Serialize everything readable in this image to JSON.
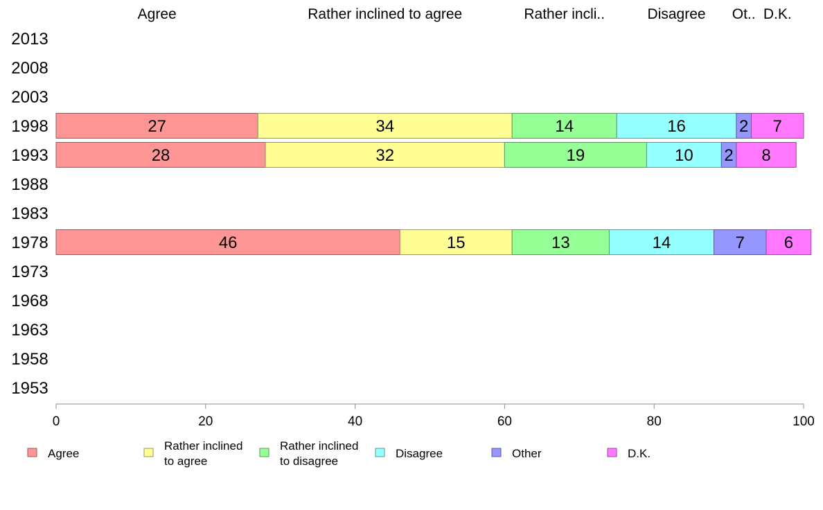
{
  "chart_data": {
    "type": "bar",
    "orientation": "horizontal",
    "stacked": true,
    "years": [
      "2013",
      "2008",
      "2003",
      "1998",
      "1993",
      "1988",
      "1983",
      "1978",
      "1973",
      "1968",
      "1963",
      "1958",
      "1953"
    ],
    "categories": [
      "Agree",
      "Rather inclined to agree",
      "Rather inclined to disagree",
      "Disagree",
      "Other",
      "D.K."
    ],
    "column_headers": [
      "Agree",
      "Rather inclined to agree",
      "Rather incli..",
      "Disagree",
      "Ot..",
      "D.K."
    ],
    "legend_labels": [
      [
        "Agree"
      ],
      [
        "Rather inclined",
        "to agree"
      ],
      [
        "Rather inclined",
        "to disagree"
      ],
      [
        "Disagree"
      ],
      [
        "Other"
      ],
      [
        "D.K."
      ]
    ],
    "colors": [
      "#ff9696",
      "#ffff96",
      "#96ff96",
      "#96ffff",
      "#9696ff",
      "#ff78ff"
    ],
    "rows": [
      {
        "year": "1998",
        "values": [
          27,
          34,
          14,
          16,
          2,
          7
        ]
      },
      {
        "year": "1993",
        "values": [
          28,
          32,
          19,
          10,
          2,
          8
        ]
      },
      {
        "year": "1978",
        "values": [
          46,
          15,
          13,
          14,
          7,
          6
        ]
      }
    ],
    "xlim": [
      0,
      100
    ],
    "xticks": [
      0,
      20,
      40,
      60,
      80,
      100
    ],
    "grid": false,
    "legend_position": "bottom"
  }
}
